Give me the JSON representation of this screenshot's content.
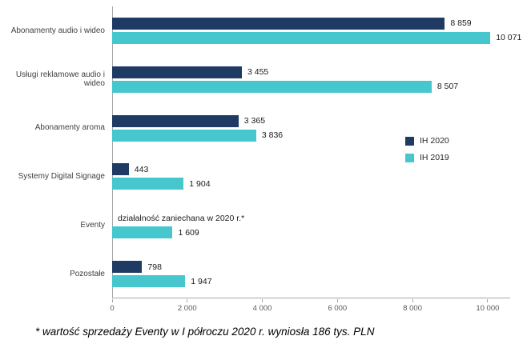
{
  "chart_data": {
    "type": "bar",
    "orientation": "horizontal",
    "title": "",
    "categories": [
      "Abonamenty audio i wideo",
      "Usługi reklamowe audio i wideo",
      "Abonamenty aroma",
      "Systemy Digital Signage",
      "Eventy",
      "Pozostałe"
    ],
    "series": [
      {
        "name": "IH 2020",
        "color": "#1f3a63",
        "values": [
          8859,
          3455,
          3365,
          443,
          null,
          798
        ],
        "labels": [
          "8 859",
          "3 455",
          "3 365",
          "443",
          "działalność zaniechana w 2020 r.*",
          "798"
        ]
      },
      {
        "name": "IH 2019",
        "color": "#45c7cd",
        "values": [
          10071,
          8507,
          3836,
          1904,
          1609,
          1947
        ],
        "labels": [
          "10 071",
          "8 507",
          "3 836",
          "1 904",
          "1 609",
          "1 947"
        ]
      }
    ],
    "x_ticks": [
      "0",
      "2 000",
      "4 000",
      "6 000",
      "8 000",
      "10 000"
    ],
    "x_tick_values": [
      0,
      2000,
      4000,
      6000,
      8000,
      10000
    ],
    "xlim": [
      0,
      10600
    ],
    "grid": "off",
    "legend_position": "right",
    "footnote": "* wartość sprzedaży Eventy w I półroczu 2020 r. wyniosła 186 tys. PLN"
  }
}
